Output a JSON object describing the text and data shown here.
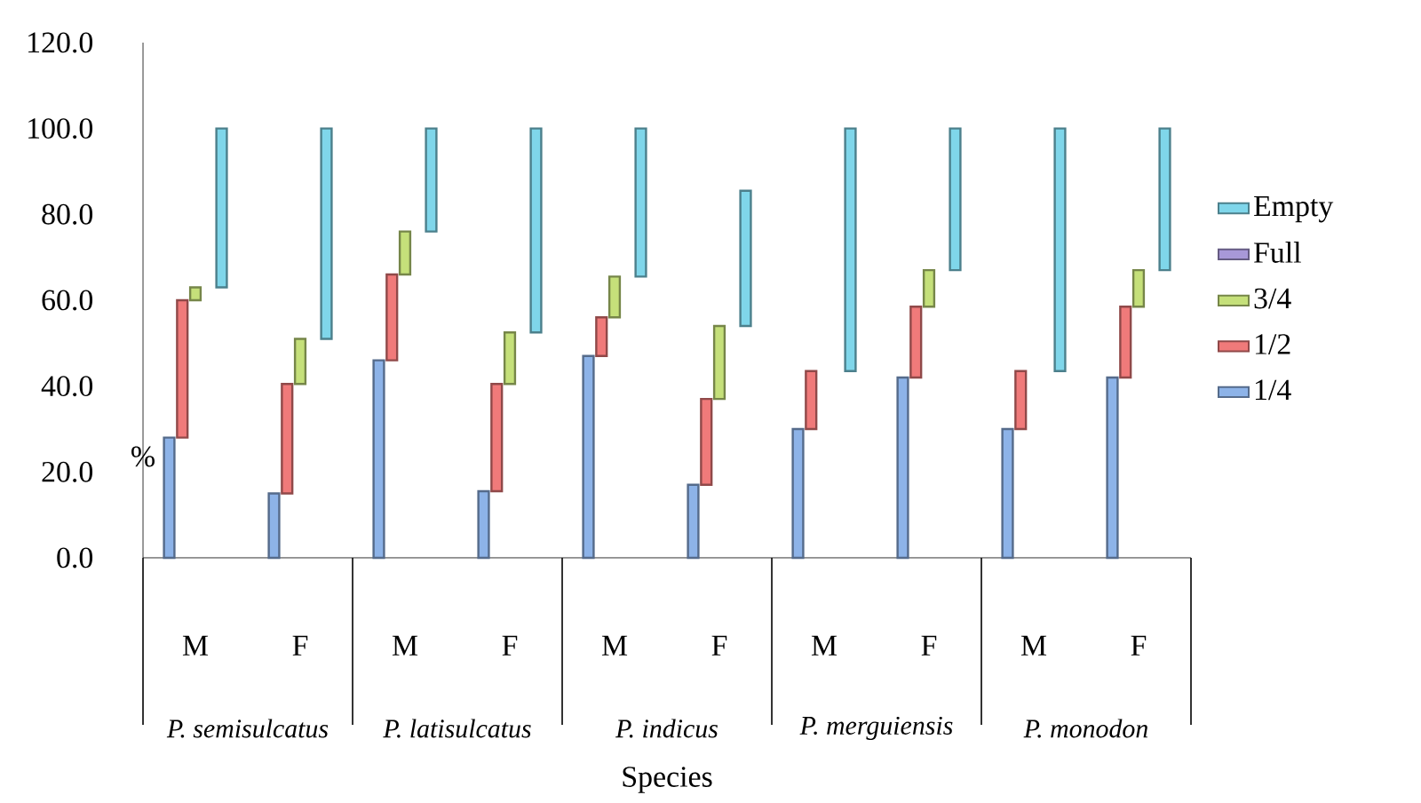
{
  "chart_data": {
    "type": "bar",
    "stacked": true,
    "xlabel": "Species",
    "ylabel": "%",
    "categories": [
      "M",
      "F",
      "M",
      "F",
      "M",
      "F",
      "M",
      "F",
      "M",
      "F"
    ],
    "series": [
      {
        "name": "1/4",
        "color": "#8db3e8",
        "values": [
          28,
          15,
          46,
          15.5,
          47,
          17,
          30,
          42,
          30,
          42
        ]
      },
      {
        "name": "1/2",
        "color": "#f07a7a",
        "values": [
          32,
          25.5,
          20,
          25,
          9,
          20,
          13.5,
          16.5,
          13.5,
          16.5
        ]
      },
      {
        "name": "3/4",
        "color": "#c5e07a",
        "values": [
          3,
          10.5,
          10,
          12,
          9.5,
          17,
          0,
          8.5,
          0,
          8.5
        ]
      },
      {
        "name": "Full",
        "color": "#a898d8",
        "values": [
          0,
          0,
          0,
          0,
          0,
          0,
          0,
          0,
          0,
          0
        ]
      },
      {
        "name": "Empty",
        "color": "#7fd6ea",
        "values": [
          37,
          49,
          24,
          47.5,
          34.5,
          31.5,
          56.5,
          33,
          56.5,
          33
        ]
      }
    ],
    "ylim": [
      0,
      120
    ],
    "yticks": [
      {
        "value": 0,
        "label": "0.0"
      },
      {
        "value": 20,
        "label": "20.0"
      },
      {
        "value": 40,
        "label": "40.0"
      },
      {
        "value": 60,
        "label": "60.0"
      },
      {
        "value": 80,
        "label": "80.0"
      },
      {
        "value": 100,
        "label": "100.0"
      },
      {
        "value": 120,
        "label": "120.0"
      }
    ],
    "legend": "right",
    "annotations": [
      "P. semisulcatus",
      "P. latisulcatus",
      "P. indicus",
      "P. merguiensis",
      "P. monodon"
    ]
  }
}
